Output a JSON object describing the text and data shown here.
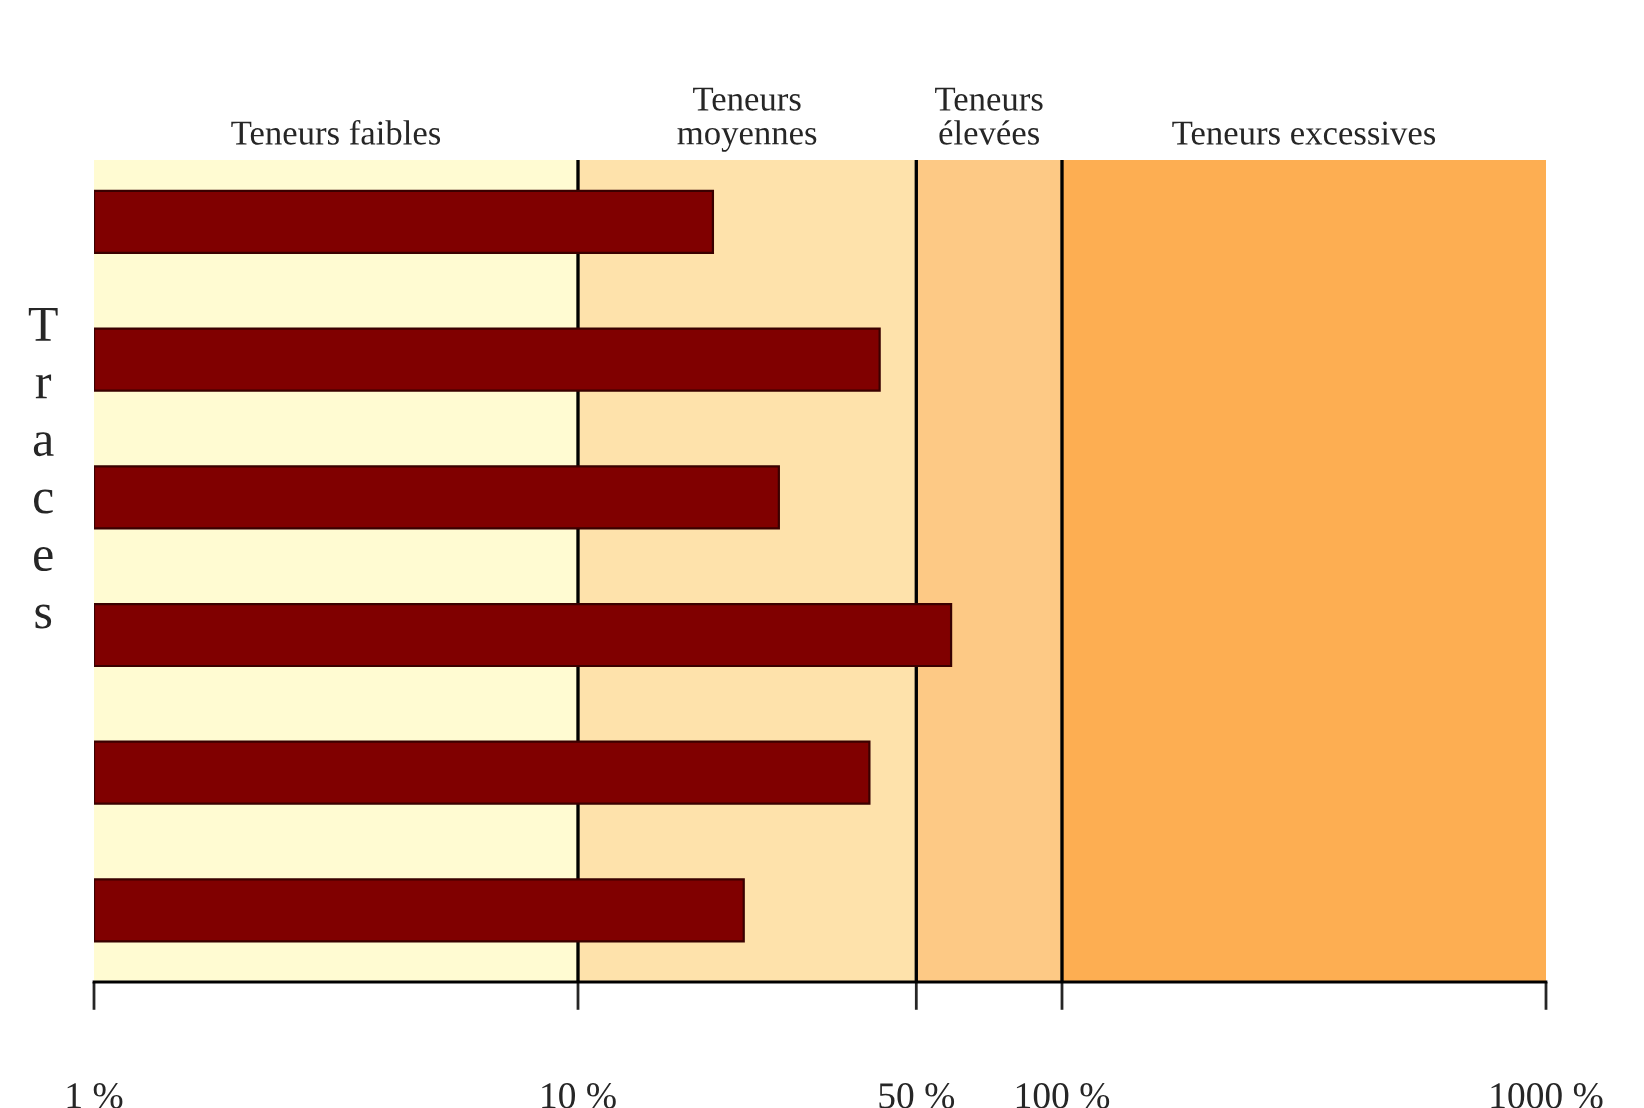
{
  "chart_data": {
    "type": "bar",
    "orientation": "horizontal",
    "log": "x",
    "ylabel": "Traces",
    "categories": [
      null,
      null,
      null,
      null,
      null,
      null
    ],
    "values": [
      19,
      42,
      26,
      59,
      40,
      22
    ],
    "color": "#800000",
    "xlim": [
      1,
      1000
    ],
    "xticks": [
      {
        "value": 1,
        "label": "1 %"
      },
      {
        "value": 10,
        "label": "10 %"
      },
      {
        "value": 50,
        "label": "50 %"
      },
      {
        "value": 100,
        "label": "100 %"
      },
      {
        "value": 1000,
        "label": "1000 %"
      }
    ],
    "tick_labels": "x",
    "grid": false,
    "bands": [
      {
        "axis": "x",
        "from": 1,
        "to": 10,
        "label": "Teneurs faibles",
        "color": "#fffbd2"
      },
      {
        "axis": "x",
        "from": 10,
        "to": 50,
        "label": "Teneurs\nmoyennes",
        "color": "#fee2ab"
      },
      {
        "axis": "x",
        "from": 50,
        "to": 100,
        "label": "Teneurs\nélevées",
        "color": "#fdc985"
      },
      {
        "axis": "x",
        "from": 100,
        "to": 1000,
        "label": "Teneurs excessives",
        "color": "#fdae52"
      }
    ],
    "ref_lines": [
      {
        "axis": "x",
        "value": 10,
        "color": "#000000"
      },
      {
        "axis": "x",
        "value": 50,
        "color": "#000000"
      },
      {
        "axis": "x",
        "value": 100,
        "color": "#000000"
      }
    ]
  }
}
